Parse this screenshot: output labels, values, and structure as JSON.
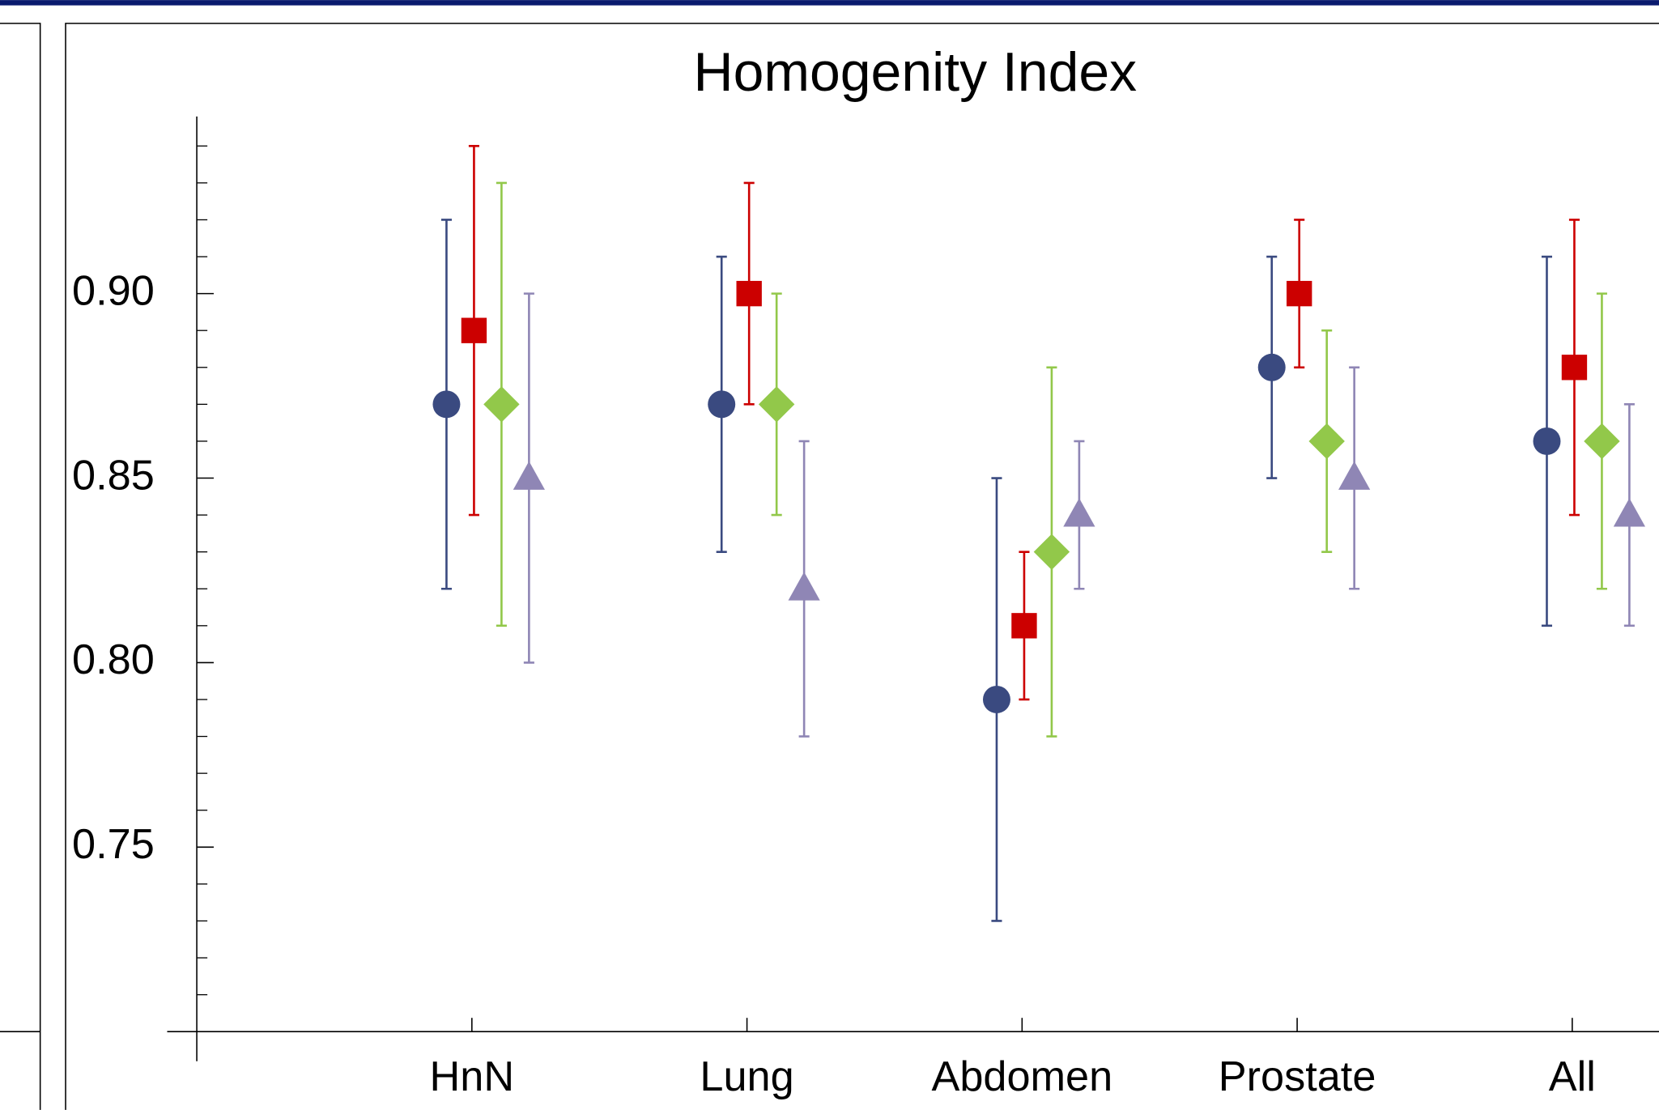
{
  "chart_data": {
    "type": "errorbar",
    "title": "Homogenity Index",
    "categories": [
      "HnN",
      "Lung",
      "Abdomen",
      "Prostate",
      "All"
    ],
    "series": [
      {
        "color": "#3a4a80",
        "marker": "circle",
        "values": [
          0.87,
          0.87,
          0.79,
          0.88,
          0.86
        ],
        "errors": [
          0.05,
          0.04,
          0.06,
          0.03,
          0.05
        ]
      },
      {
        "color": "#cc0000",
        "marker": "square",
        "values": [
          0.89,
          0.9,
          0.81,
          0.9,
          0.88
        ],
        "errors": [
          0.05,
          0.03,
          0.02,
          0.02,
          0.04
        ]
      },
      {
        "color": "#92c84a",
        "marker": "diamond",
        "values": [
          0.87,
          0.87,
          0.83,
          0.86,
          0.86
        ],
        "errors": [
          0.06,
          0.03,
          0.05,
          0.03,
          0.04
        ]
      },
      {
        "color": "#8f86b5",
        "marker": "triangle",
        "values": [
          0.85,
          0.82,
          0.84,
          0.85,
          0.84
        ],
        "errors": [
          0.05,
          0.04,
          0.02,
          0.03,
          0.03
        ]
      }
    ],
    "ylim": [
      0.7,
      0.948
    ],
    "yticks": [
      {
        "value": 0.75,
        "label": "0.75"
      },
      {
        "value": 0.8,
        "label": "0.80"
      },
      {
        "value": 0.85,
        "label": "0.85"
      },
      {
        "value": 0.9,
        "label": "0.90"
      }
    ],
    "minor_yticks": [
      0.71,
      0.72,
      0.73,
      0.74,
      0.76,
      0.77,
      0.78,
      0.79,
      0.81,
      0.82,
      0.83,
      0.84,
      0.86,
      0.87,
      0.88,
      0.89,
      0.91,
      0.92,
      0.93,
      0.94
    ]
  }
}
